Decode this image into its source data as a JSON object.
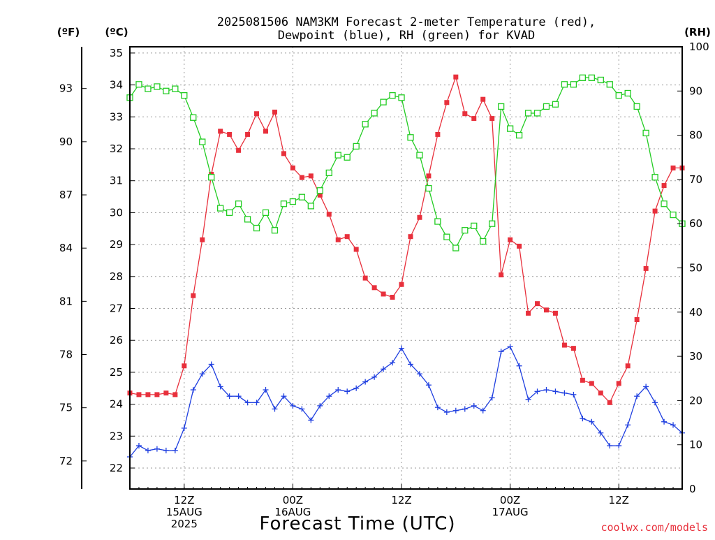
{
  "chart_data": {
    "type": "line",
    "title_lines": [
      "2025081506 NAM3KM Forecast 2-meter Temperature (red),",
      "Dewpoint (blue), RH (green) for KVAD"
    ],
    "units": {
      "fahrenheit": "(ºF)",
      "celsius": "(ºC)",
      "rh": "(RH)"
    },
    "xlabel": "Forecast Time (UTC)",
    "credit": "coolwx.com/models",
    "x_range_hours": [
      6,
      67
    ],
    "celsius_range": [
      21.6,
      35.5
    ],
    "rh_range": [
      0,
      100
    ],
    "celsius_ticks": [
      "22",
      "23",
      "24",
      "25",
      "26",
      "27",
      "28",
      "29",
      "30",
      "31",
      "32",
      "33",
      "34",
      "35"
    ],
    "fahrenheit_ticks": [
      "72",
      "75",
      "78",
      "81",
      "84",
      "87",
      "90",
      "93"
    ],
    "rh_ticks": [
      "0",
      "10",
      "20",
      "30",
      "40",
      "50",
      "60",
      "70",
      "80",
      "90",
      "100"
    ],
    "x_ticks": [
      {
        "hour": 12,
        "lines": [
          "12Z",
          "15AUG",
          "2025"
        ]
      },
      {
        "hour": 24,
        "lines": [
          "00Z",
          "16AUG"
        ]
      },
      {
        "hour": 36,
        "lines": [
          "12Z"
        ]
      },
      {
        "hour": 48,
        "lines": [
          "00Z",
          "17AUG"
        ]
      },
      {
        "hour": 60,
        "lines": [
          "12Z"
        ]
      }
    ],
    "grid": true,
    "colors": {
      "temperature": "#e8303c",
      "dewpoint": "#1f3fe0",
      "rh": "#22cc22"
    },
    "series": [
      {
        "name": "Temperature",
        "axis": "celsius",
        "marker": "filled-square",
        "x": [
          6,
          7,
          8,
          9,
          10,
          11,
          12,
          13,
          14,
          15,
          16,
          17,
          18,
          19,
          20,
          21,
          22,
          23,
          24,
          25,
          26,
          27,
          28,
          29,
          30,
          31,
          32,
          33,
          34,
          35,
          36,
          37,
          38,
          39,
          40,
          41,
          42,
          43,
          44,
          45,
          46,
          47,
          48,
          49,
          50,
          51,
          52,
          53,
          54,
          55,
          56,
          57,
          58,
          59,
          60,
          61,
          62,
          63,
          64,
          65,
          66,
          67
        ],
        "values": [
          24.35,
          24.3,
          24.3,
          24.3,
          24.35,
          24.3,
          25.2,
          27.4,
          29.15,
          31.2,
          32.55,
          32.45,
          31.95,
          32.45,
          33.1,
          32.55,
          33.15,
          31.85,
          31.4,
          31.1,
          31.15,
          30.55,
          29.95,
          29.15,
          29.25,
          28.85,
          27.95,
          27.65,
          27.45,
          27.35,
          27.75,
          29.25,
          29.85,
          31.15,
          32.45,
          33.45,
          34.25,
          33.1,
          32.95,
          33.55,
          32.95,
          28.05,
          29.15,
          28.95,
          26.85,
          27.15,
          26.95,
          26.85,
          25.85,
          25.75,
          24.75,
          24.65,
          24.35,
          24.05,
          24.65,
          25.2,
          26.65,
          28.25,
          30.05,
          30.85,
          31.4,
          31.4
        ]
      },
      {
        "name": "Dewpoint",
        "axis": "celsius",
        "marker": "plus",
        "x": [
          6,
          7,
          8,
          9,
          10,
          11,
          12,
          13,
          14,
          15,
          16,
          17,
          18,
          19,
          20,
          21,
          22,
          23,
          24,
          25,
          26,
          27,
          28,
          29,
          30,
          31,
          32,
          33,
          34,
          35,
          36,
          37,
          38,
          39,
          40,
          41,
          42,
          43,
          44,
          45,
          46,
          47,
          48,
          49,
          50,
          51,
          52,
          53,
          54,
          55,
          56,
          57,
          58,
          59,
          60,
          61,
          62,
          63,
          64,
          65,
          66,
          67
        ],
        "values": [
          22.35,
          22.7,
          22.55,
          22.6,
          22.55,
          22.55,
          23.25,
          24.45,
          24.95,
          25.25,
          24.55,
          24.25,
          24.25,
          24.05,
          24.05,
          24.45,
          23.85,
          24.25,
          23.95,
          23.85,
          23.5,
          23.95,
          24.25,
          24.45,
          24.4,
          24.5,
          24.7,
          24.85,
          25.1,
          25.3,
          25.75,
          25.25,
          24.95,
          24.6,
          23.9,
          23.75,
          23.8,
          23.85,
          23.95,
          23.8,
          24.2,
          25.65,
          25.8,
          25.2,
          24.15,
          24.4,
          24.45,
          24.4,
          24.35,
          24.3,
          23.55,
          23.45,
          23.1,
          22.7,
          22.7,
          23.35,
          24.25,
          24.55,
          24.05,
          23.45,
          23.35,
          23.1
        ]
      },
      {
        "name": "RH",
        "axis": "rh",
        "marker": "open-square",
        "x": [
          6,
          7,
          8,
          9,
          10,
          11,
          12,
          13,
          14,
          15,
          16,
          17,
          18,
          19,
          20,
          21,
          22,
          23,
          24,
          25,
          26,
          27,
          28,
          29,
          30,
          31,
          32,
          33,
          34,
          35,
          36,
          37,
          38,
          39,
          40,
          41,
          42,
          43,
          44,
          45,
          46,
          47,
          48,
          49,
          50,
          51,
          52,
          53,
          54,
          55,
          56,
          57,
          58,
          59,
          60,
          61,
          62,
          63,
          64,
          65,
          66,
          67
        ],
        "values": [
          88.5,
          91.5,
          90.5,
          91,
          90,
          90.5,
          89,
          84,
          78.5,
          70.5,
          63.5,
          62.5,
          64.5,
          61,
          59,
          62.5,
          58.5,
          64.5,
          65,
          66,
          64,
          67.5,
          71.5,
          75.5,
          75,
          77.5,
          82.5,
          85,
          87.5,
          89,
          88.5,
          79.5,
          75.5,
          68,
          60.5,
          57,
          54.5,
          58.5,
          59.5,
          56,
          60,
          86.5,
          81.5,
          80,
          85,
          85,
          86.5,
          87,
          91.5,
          91.5,
          93,
          93,
          92.5,
          91.5,
          89,
          89.5,
          86.5,
          80.5,
          70.5,
          64.5,
          62,
          60
        ]
      }
    ]
  }
}
